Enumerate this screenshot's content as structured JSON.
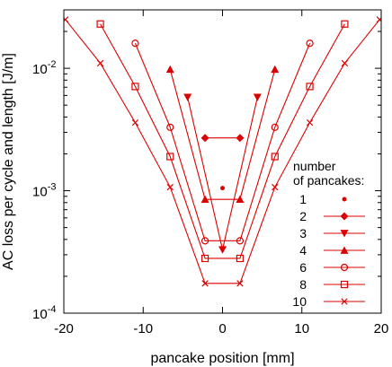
{
  "chart_data": {
    "type": "line",
    "title": "",
    "xlabel": "pancake position [mm]",
    "ylabel": "AC loss per cycle and length [J/m]",
    "xlim": [
      -20,
      20
    ],
    "ylim": [
      0.0001,
      0.03
    ],
    "yscale": "log",
    "grid": false,
    "legend_title": "number\nof pancakes:",
    "legend_position": "right",
    "color": "#dd0000",
    "x_ticks": [
      {
        "value": -20,
        "label": "-20"
      },
      {
        "value": -10,
        "label": "-10"
      },
      {
        "value": 0,
        "label": "0"
      },
      {
        "value": 10,
        "label": "10"
      },
      {
        "value": 20,
        "label": "20"
      }
    ],
    "y_ticks": [
      {
        "value": 0.0001,
        "base": "10",
        "exp": "-4"
      },
      {
        "value": 0.001,
        "base": "10",
        "exp": "-3"
      },
      {
        "value": 0.01,
        "base": "10",
        "exp": "-2"
      }
    ],
    "series": [
      {
        "name": "1",
        "marker": "dot",
        "line": false,
        "x": [
          0
        ],
        "y": [
          0.00105
        ]
      },
      {
        "name": "2",
        "marker": "diamond",
        "line": true,
        "x": [
          -2.2,
          2.2
        ],
        "y": [
          0.0027,
          0.0027
        ]
      },
      {
        "name": "3",
        "marker": "triangle-down",
        "line": true,
        "x": [
          -4.4,
          0,
          4.4
        ],
        "y": [
          0.0058,
          0.00033,
          0.0058
        ]
      },
      {
        "name": "4",
        "marker": "triangle-up",
        "line": true,
        "x": [
          -6.6,
          -2.2,
          2.2,
          6.6
        ],
        "y": [
          0.0098,
          0.00085,
          0.00085,
          0.0098
        ]
      },
      {
        "name": "6",
        "marker": "circle",
        "line": true,
        "x": [
          -11,
          -6.6,
          -2.2,
          2.2,
          6.6,
          11
        ],
        "y": [
          0.016,
          0.0033,
          0.00039,
          0.00039,
          0.0033,
          0.016
        ]
      },
      {
        "name": "8",
        "marker": "square",
        "line": true,
        "x": [
          -15.4,
          -11,
          -6.6,
          -2.2,
          2.2,
          6.6,
          11,
          15.4
        ],
        "y": [
          0.023,
          0.0071,
          0.0019,
          0.00028,
          0.00028,
          0.0019,
          0.0071,
          0.023
        ]
      },
      {
        "name": "10",
        "marker": "x",
        "line": true,
        "x": [
          -19.8,
          -15.4,
          -11,
          -6.6,
          -2.2,
          2.2,
          6.6,
          11,
          15.4,
          19.8
        ],
        "y": [
          0.025,
          0.011,
          0.0036,
          0.00107,
          0.000175,
          0.000175,
          0.00107,
          0.0036,
          0.011,
          0.025
        ]
      }
    ]
  }
}
